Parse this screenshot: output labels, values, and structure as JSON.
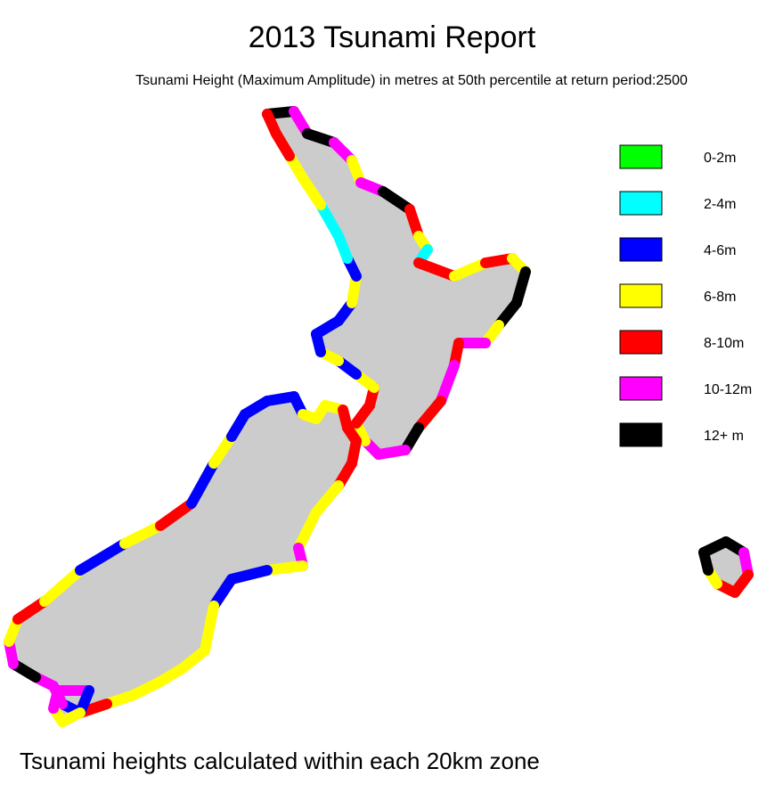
{
  "title": "2013 Tsunami Report",
  "subtitle": "Tsunami Height (Maximum Amplitude) in metres at 50th percentile at return period:2500",
  "legend": [
    {
      "label": "0-2m",
      "color": "#00ff00"
    },
    {
      "label": "2-4m",
      "color": "#00ffff"
    },
    {
      "label": "4-6m",
      "color": "#0000ff"
    },
    {
      "label": "6-8m",
      "color": "#ffff00"
    },
    {
      "label": "8-10m",
      "color": "#ff0000"
    },
    {
      "label": "10-12m",
      "color": "#ff00ff"
    },
    {
      "label": "12+ m",
      "color": "#000000"
    }
  ],
  "footer": "Tsunami heights calculated within each 20km zone"
}
